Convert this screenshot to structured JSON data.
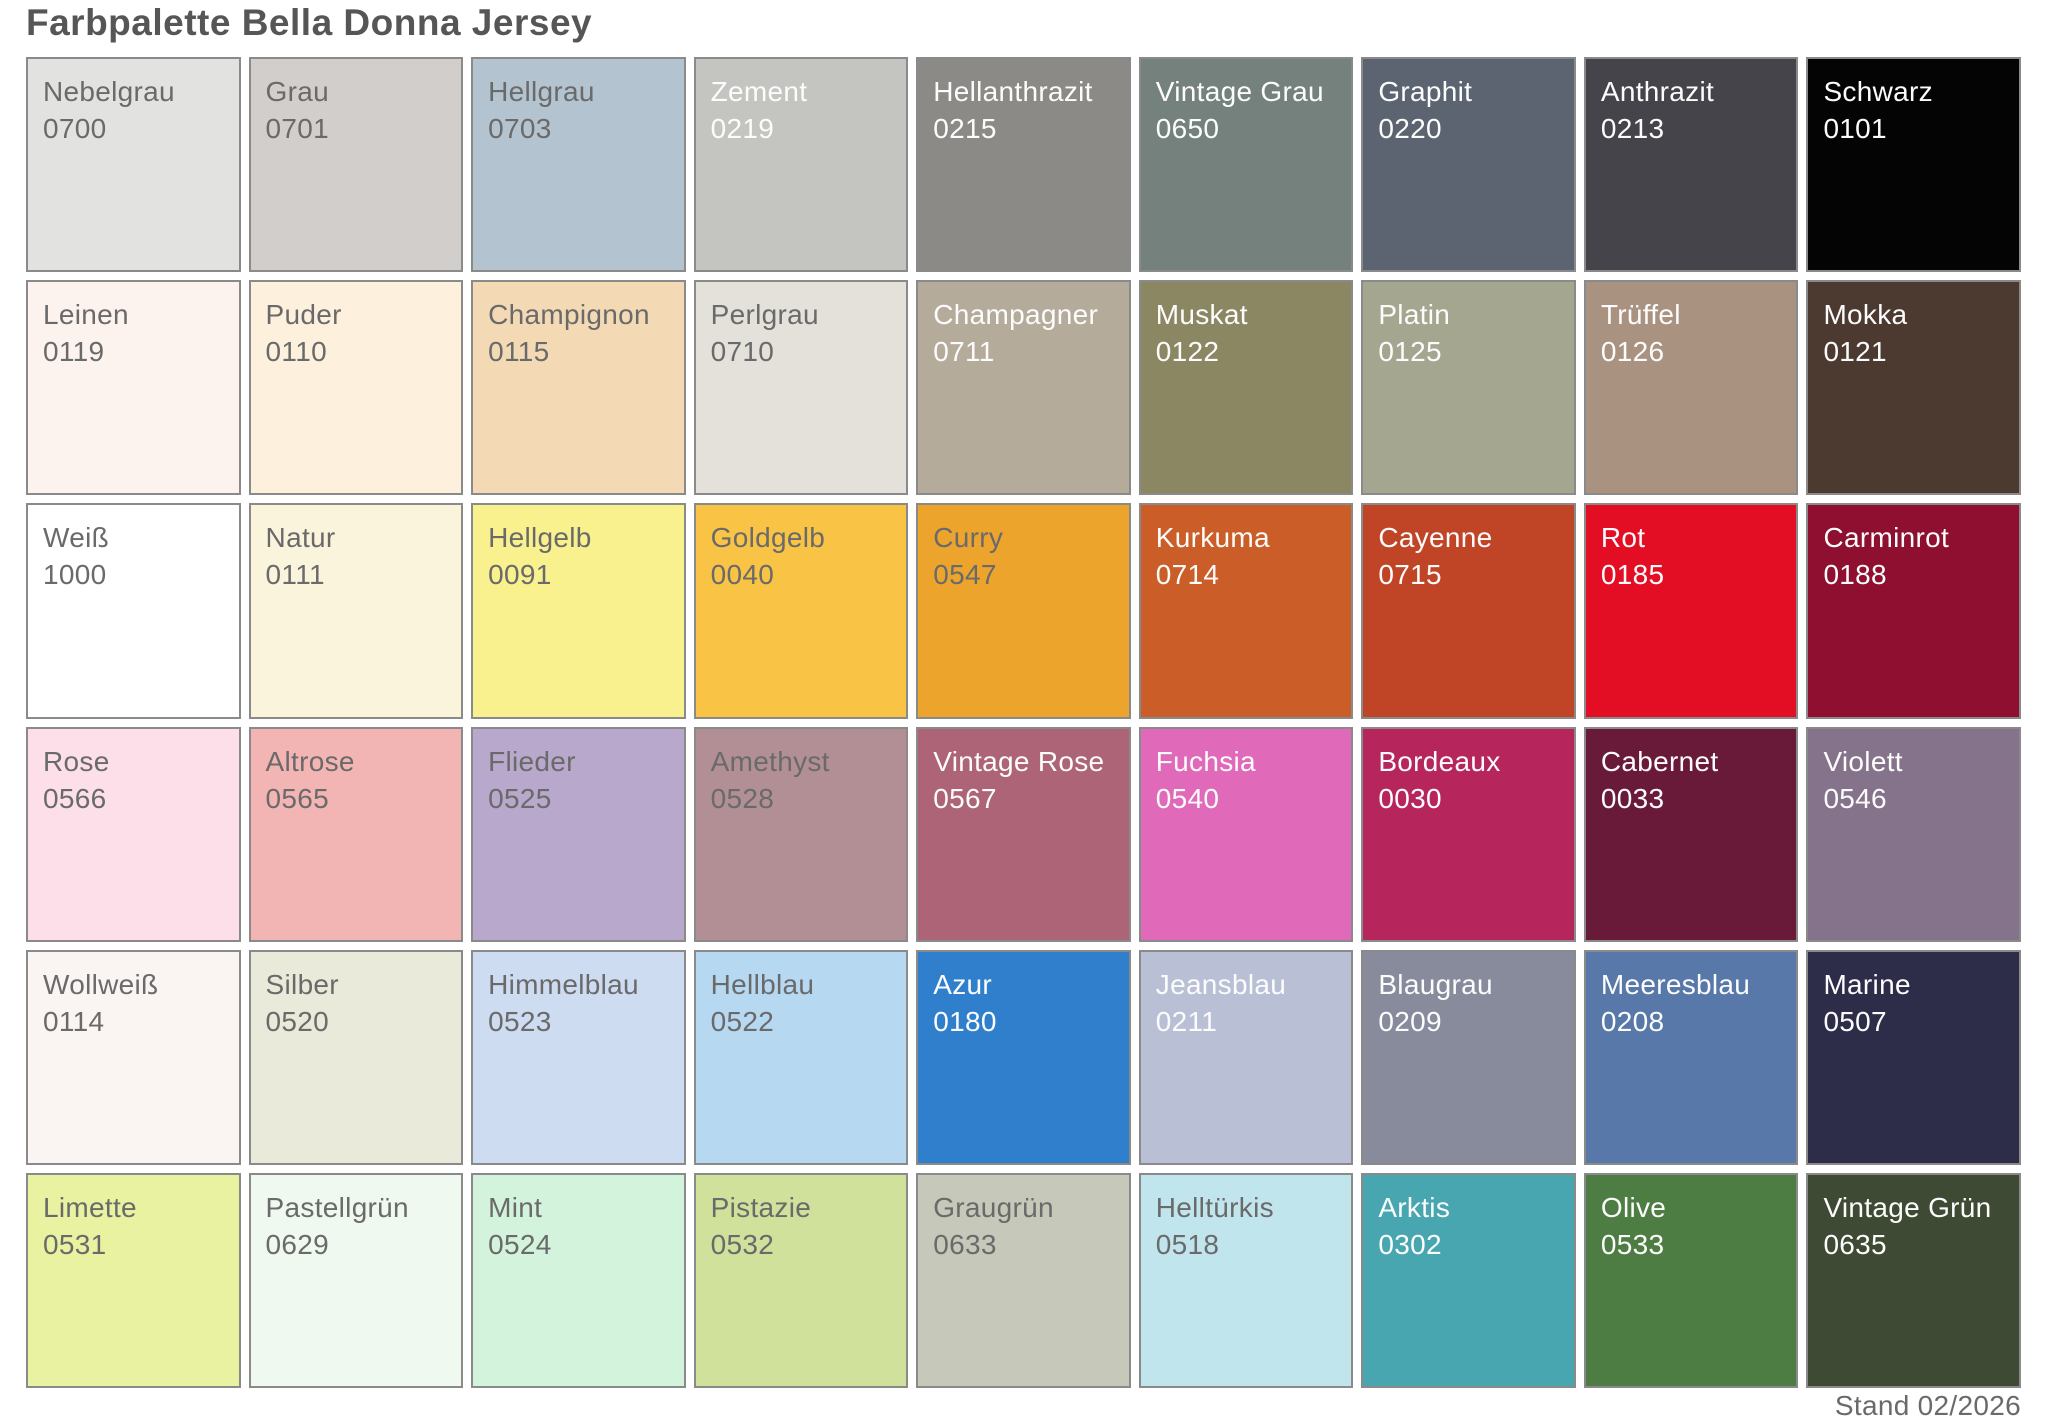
{
  "title": "Farbpalette Bella Donna Jersey",
  "footer": "Stand 02/2026",
  "text_colors": {
    "dark": "#6a6a6a",
    "light": "#fcfcfc"
  },
  "swatches": [
    {
      "name": "Nebelgrau",
      "code": "0700",
      "bg": "#e2e2e0",
      "text": "dark"
    },
    {
      "name": "Grau",
      "code": "0701",
      "bg": "#d1cecb",
      "text": "dark"
    },
    {
      "name": "Hellgrau",
      "code": "0703",
      "bg": "#b3c3cf",
      "text": "dark"
    },
    {
      "name": "Zement",
      "code": "0219",
      "bg": "#c4c5c1",
      "text": "light"
    },
    {
      "name": "Hellanthrazit",
      "code": "0215",
      "bg": "#8b8a87",
      "text": "light"
    },
    {
      "name": "Vintage Grau",
      "code": "0650",
      "bg": "#75817d",
      "text": "light"
    },
    {
      "name": "Graphit",
      "code": "0220",
      "bg": "#5b6470",
      "text": "light"
    },
    {
      "name": "Anthrazit",
      "code": "0213",
      "bg": "#46444b",
      "text": "light"
    },
    {
      "name": "Schwarz",
      "code": "0101",
      "bg": "#040404",
      "text": "light"
    },
    {
      "name": "Leinen",
      "code": "0119",
      "bg": "#fcf2ee",
      "text": "dark"
    },
    {
      "name": "Puder",
      "code": "0110",
      "bg": "#fdf1dd",
      "text": "dark"
    },
    {
      "name": "Champignon",
      "code": "0115",
      "bg": "#f4dab4",
      "text": "dark"
    },
    {
      "name": "Perlgrau",
      "code": "0710",
      "bg": "#e3e1da",
      "text": "dark"
    },
    {
      "name": "Champagner",
      "code": "0711",
      "bg": "#b5ab9a",
      "text": "light"
    },
    {
      "name": "Muskat",
      "code": "0122",
      "bg": "#8b8762",
      "text": "light"
    },
    {
      "name": "Platin",
      "code": "0125",
      "bg": "#a5a68f",
      "text": "light"
    },
    {
      "name": "Trüffel",
      "code": "0126",
      "bg": "#aa9281",
      "text": "light"
    },
    {
      "name": "Mokka",
      "code": "0121",
      "bg": "#4c3a31",
      "text": "light"
    },
    {
      "name": "Weiß",
      "code": "1000",
      "bg": "#ffffff",
      "text": "dark"
    },
    {
      "name": "Natur",
      "code": "0111",
      "bg": "#fbf4dc",
      "text": "dark"
    },
    {
      "name": "Hellgelb",
      "code": "0091",
      "bg": "#f9f08e",
      "text": "dark"
    },
    {
      "name": "Goldgelb",
      "code": "0040",
      "bg": "#f9c445",
      "text": "dark"
    },
    {
      "name": "Curry",
      "code": "0547",
      "bg": "#eda42c",
      "text": "dark"
    },
    {
      "name": "Kurkuma",
      "code": "0714",
      "bg": "#cb5e28",
      "text": "light"
    },
    {
      "name": "Cayenne",
      "code": "0715",
      "bg": "#c04426",
      "text": "light"
    },
    {
      "name": "Rot",
      "code": "0185",
      "bg": "#e30e24",
      "text": "light"
    },
    {
      "name": "Carminrot",
      "code": "0188",
      "bg": "#8e0f30",
      "text": "light"
    },
    {
      "name": "Rose",
      "code": "0566",
      "bg": "#fcdfe8",
      "text": "dark"
    },
    {
      "name": "Altrose",
      "code": "0565",
      "bg": "#f3b5b4",
      "text": "dark"
    },
    {
      "name": "Flieder",
      "code": "0525",
      "bg": "#b7a8cc",
      "text": "dark"
    },
    {
      "name": "Amethyst",
      "code": "0528",
      "bg": "#b18f95",
      "text": "dark"
    },
    {
      "name": "Vintage Rose",
      "code": "0567",
      "bg": "#ac6476",
      "text": "light"
    },
    {
      "name": "Fuchsia",
      "code": "0540",
      "bg": "#e069b9",
      "text": "light"
    },
    {
      "name": "Bordeaux",
      "code": "0030",
      "bg": "#b7255d",
      "text": "light"
    },
    {
      "name": "Cabernet",
      "code": "0033",
      "bg": "#6a1a39",
      "text": "light"
    },
    {
      "name": "Violett",
      "code": "0546",
      "bg": "#84738a",
      "text": "light"
    },
    {
      "name": "Wollweiß",
      "code": "0114",
      "bg": "#faf4f2",
      "text": "dark"
    },
    {
      "name": "Silber",
      "code": "0520",
      "bg": "#e9ead9",
      "text": "dark"
    },
    {
      "name": "Himmelblau",
      "code": "0523",
      "bg": "#cddcf1",
      "text": "dark"
    },
    {
      "name": "Hellblau",
      "code": "0522",
      "bg": "#b6d8f1",
      "text": "dark"
    },
    {
      "name": "Azur",
      "code": "0180",
      "bg": "#2f7fcc",
      "text": "light"
    },
    {
      "name": "Jeansblau",
      "code": "0211",
      "bg": "#b9c0d6",
      "text": "light"
    },
    {
      "name": "Blaugrau",
      "code": "0209",
      "bg": "#878b9c",
      "text": "light"
    },
    {
      "name": "Meeresblau",
      "code": "0208",
      "bg": "#5778a8",
      "text": "light"
    },
    {
      "name": "Marine",
      "code": "0507",
      "bg": "#2d2d49",
      "text": "light"
    },
    {
      "name": "Limette",
      "code": "0531",
      "bg": "#e9f2a0",
      "text": "dark"
    },
    {
      "name": "Pastellgrün",
      "code": "0629",
      "bg": "#eff9ef",
      "text": "dark"
    },
    {
      "name": "Mint",
      "code": "0524",
      "bg": "#d4f3dd",
      "text": "dark"
    },
    {
      "name": "Pistazie",
      "code": "0532",
      "bg": "#d0e19c",
      "text": "dark"
    },
    {
      "name": "Graugrün",
      "code": "0633",
      "bg": "#c6c8b9",
      "text": "dark"
    },
    {
      "name": "Helltürkis",
      "code": "0518",
      "bg": "#c0e5ed",
      "text": "dark"
    },
    {
      "name": "Arktis",
      "code": "0302",
      "bg": "#48a6b1",
      "text": "light"
    },
    {
      "name": "Olive",
      "code": "0533",
      "bg": "#4e7d43",
      "text": "light"
    },
    {
      "name": "Vintage Grün",
      "code": "0635",
      "bg": "#3e4a34",
      "text": "light"
    }
  ]
}
